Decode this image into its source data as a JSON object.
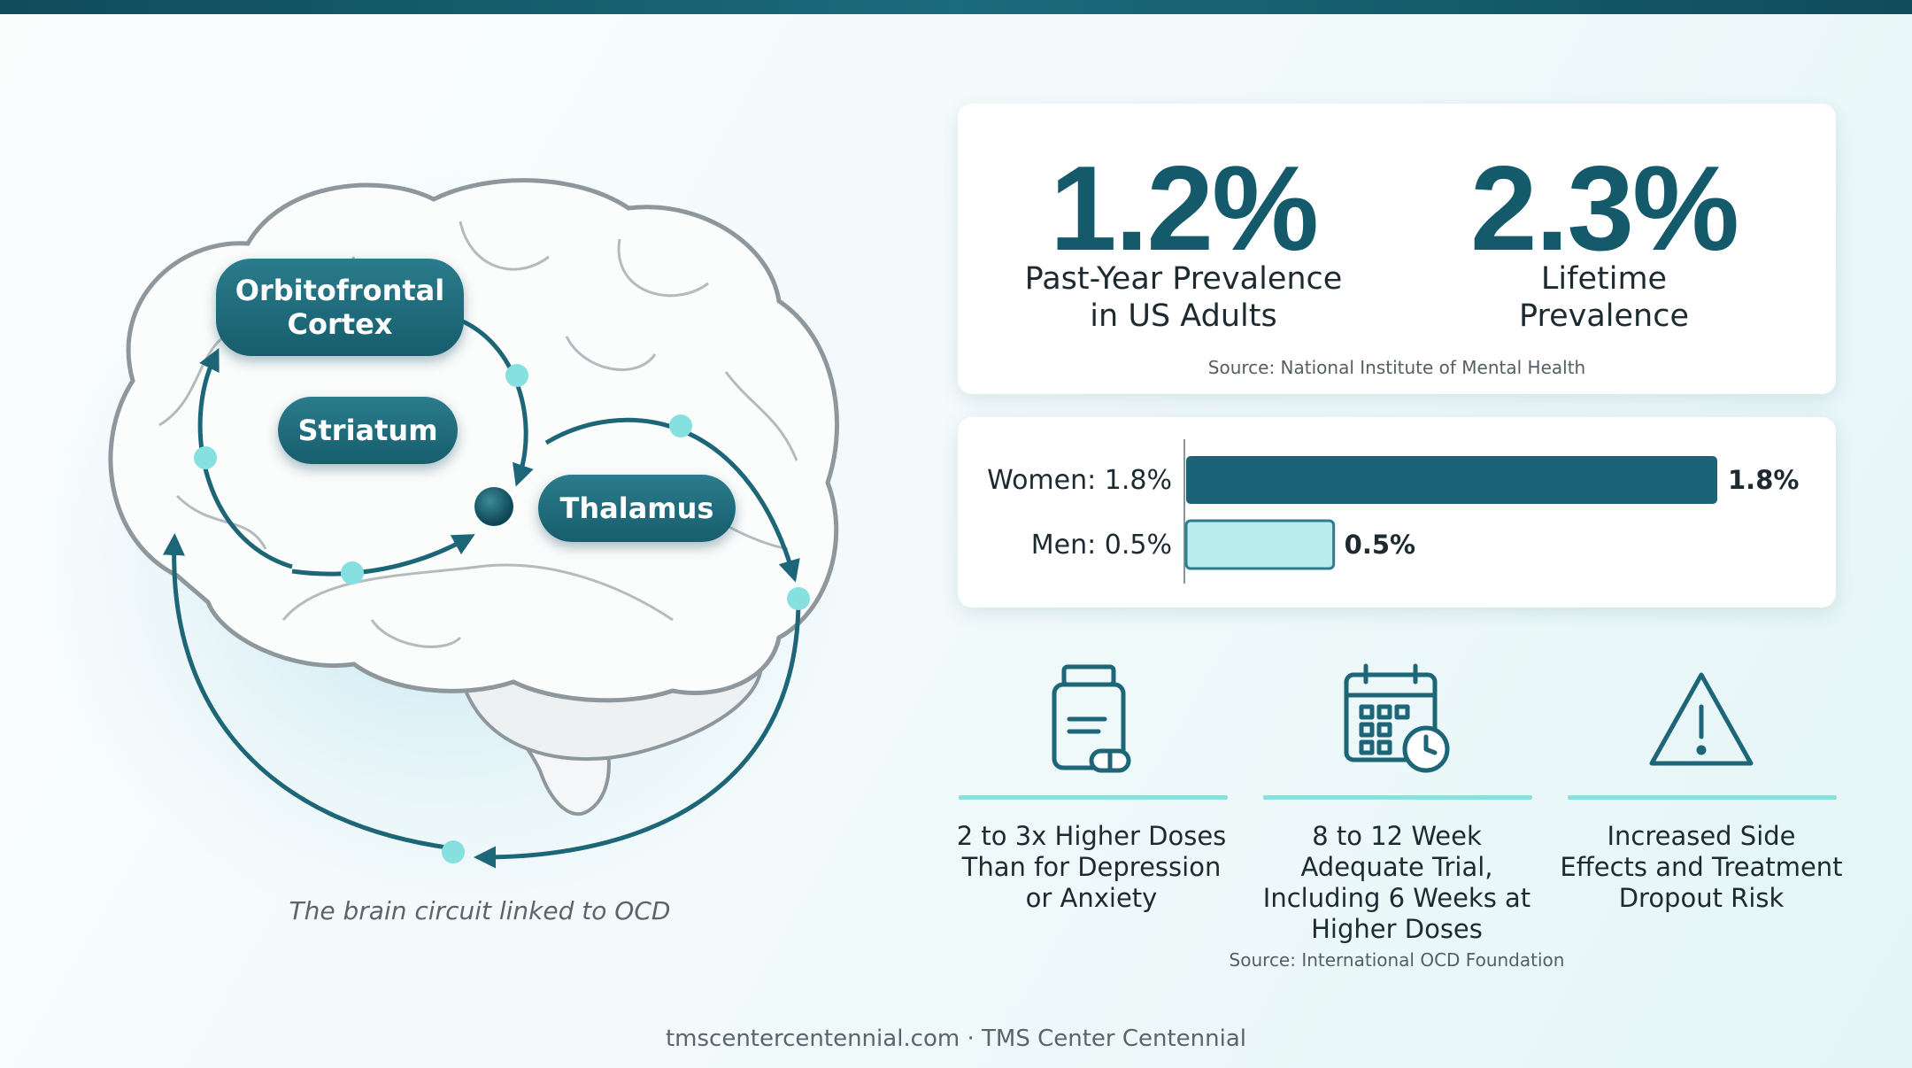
{
  "brain": {
    "regions": [
      "Orbitofrontal Cortex",
      "Striatum",
      "Thalamus"
    ],
    "caption": "The brain circuit linked to OCD"
  },
  "stats": {
    "items": [
      {
        "value": "1.2%",
        "label": "Past-Year Prevalence in US Adults"
      },
      {
        "value": "2.3%",
        "label": "Lifetime Prevalence"
      }
    ],
    "source": "Source: National Institute of Mental Health"
  },
  "chart_data": {
    "type": "bar",
    "orientation": "horizontal",
    "categories": [
      "Women: 1.8%",
      "Men: 0.5%"
    ],
    "values": [
      1.8,
      0.5
    ],
    "value_labels": [
      "1.8%",
      "0.5%"
    ],
    "colors": [
      "#1b6376",
      "#b9ecec"
    ]
  },
  "treatment": {
    "items": [
      "2 to 3x Higher Doses Than for Depression or Anxiety",
      "8 to 12 Week Adequate Trial, Including 6 Weeks at Higher Doses",
      "Increased Side Effects and Treatment Dropout Risk"
    ],
    "source": "Source: International OCD Foundation"
  },
  "footer": "tmscentercentennial.com · TMS Center Centennial"
}
